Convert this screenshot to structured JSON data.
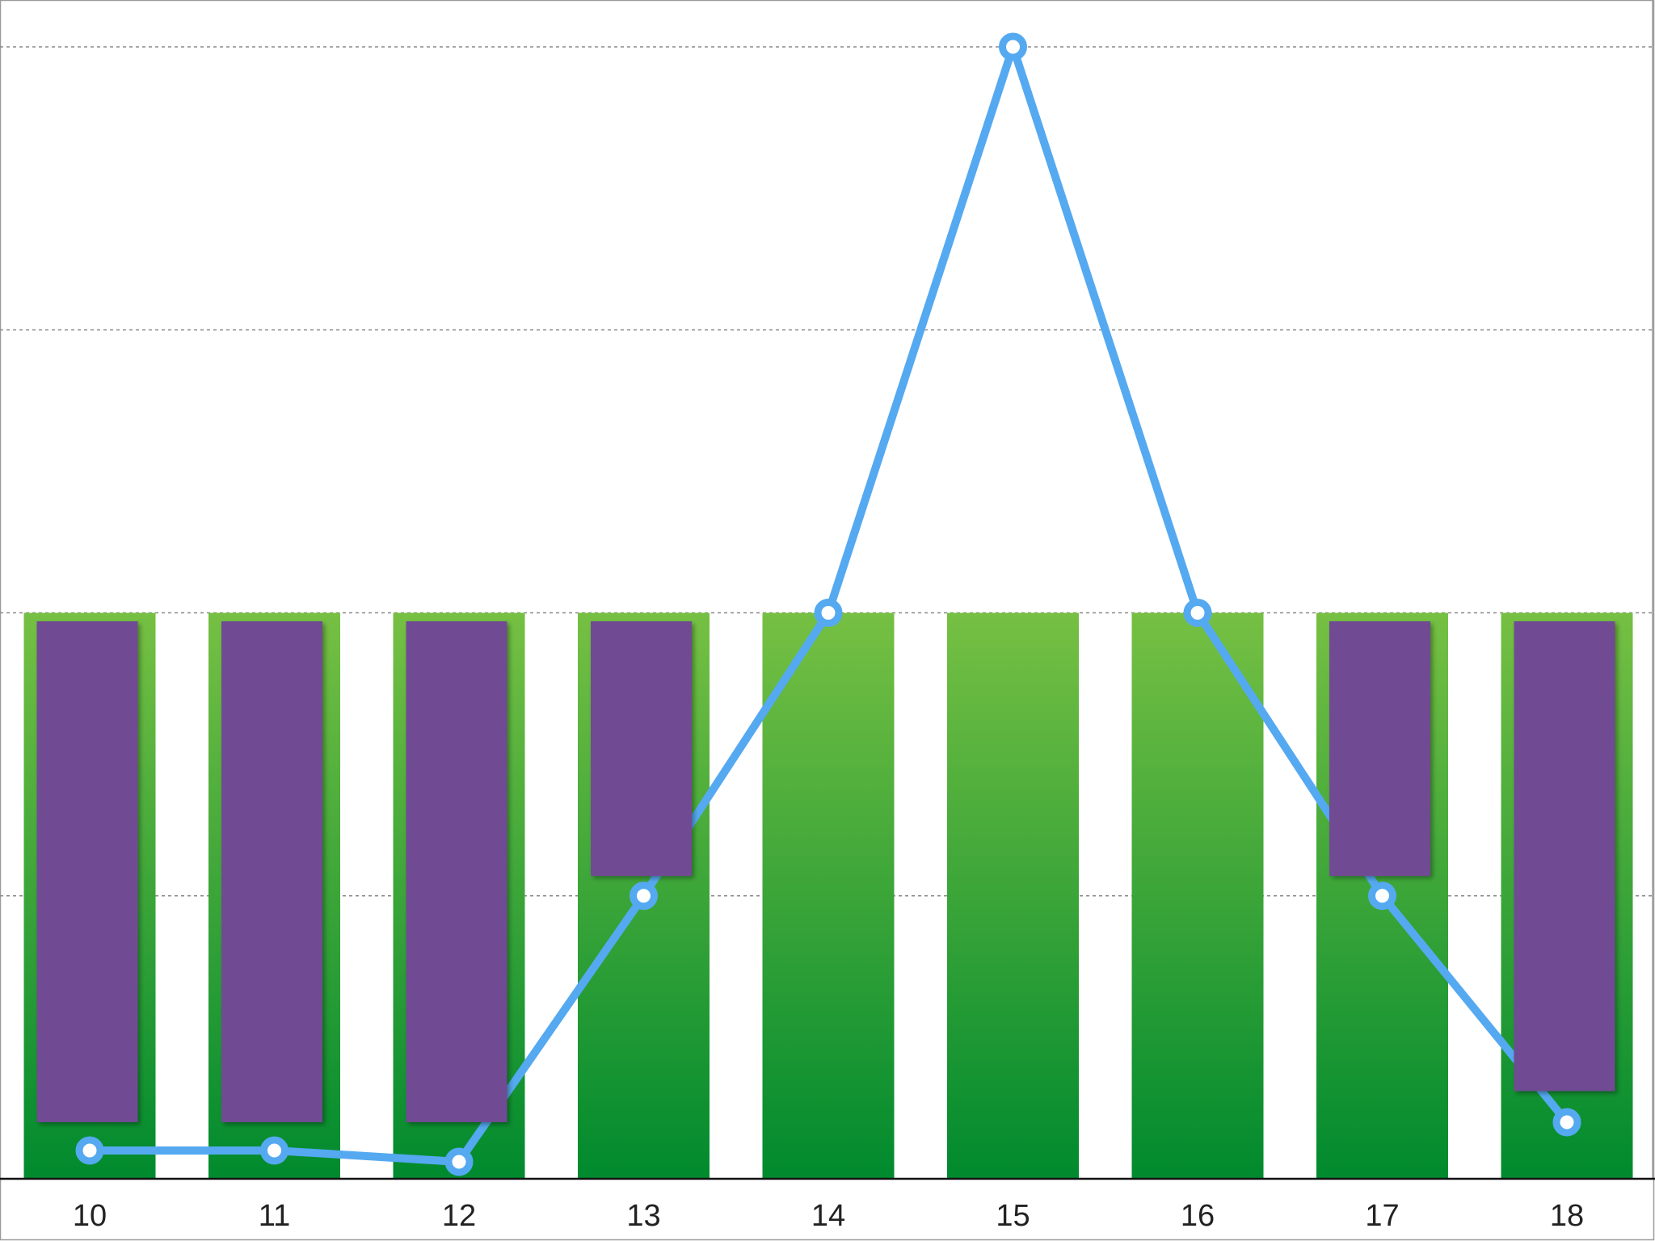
{
  "chart_data": {
    "type": "bar",
    "categories": [
      "10",
      "11",
      "12",
      "13",
      "14",
      "15",
      "16",
      "17",
      "18"
    ],
    "ylim": [
      0,
      4
    ],
    "grid": true,
    "series": [
      {
        "kind": "bar",
        "color_top": "#76c043",
        "color_bottom": "#008a2e",
        "values": [
          2,
          2,
          2,
          2,
          2,
          2,
          2,
          2,
          2
        ]
      },
      {
        "kind": "floating-bar",
        "color": "#704b93",
        "ranges": [
          [
            0.2,
            1.97
          ],
          [
            0.2,
            1.97
          ],
          [
            0.2,
            1.97
          ],
          [
            1.07,
            1.97
          ],
          null,
          null,
          null,
          [
            1.07,
            1.97
          ],
          [
            0.31,
            1.97
          ]
        ]
      },
      {
        "kind": "line",
        "color": "#55a9f0",
        "values": [
          0.1,
          0.1,
          0.06,
          1.0,
          2.0,
          4.0,
          2.0,
          1.0,
          0.2
        ]
      }
    ]
  }
}
